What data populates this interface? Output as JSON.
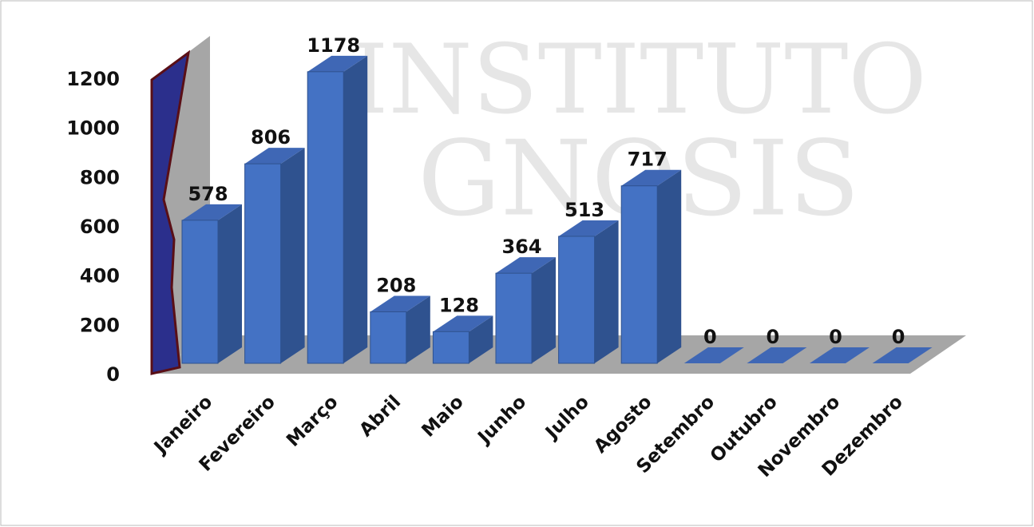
{
  "chart_data": {
    "type": "bar3d",
    "watermark": [
      "INSTITUTO",
      "GNOSIS"
    ],
    "categories": [
      "Janeiro",
      "Fevereiro",
      "Março",
      "Abril",
      "Maio",
      "Junho",
      "Julho",
      "Agosto",
      "Setembro",
      "Outubro",
      "Novembro",
      "Dezembro"
    ],
    "values": [
      578,
      806,
      1178,
      208,
      128,
      364,
      513,
      717,
      0,
      0,
      0,
      0
    ],
    "color": "#4472c4",
    "ylim": [
      0,
      1200
    ],
    "yticks": [
      0,
      200,
      400,
      600,
      800,
      1000,
      1200
    ],
    "grid": false
  }
}
